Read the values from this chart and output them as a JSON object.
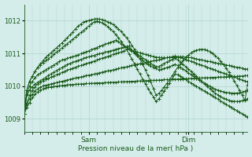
{
  "bg_color": "#d4ecea",
  "grid_color": "#b0d4ce",
  "line_color": "#1a5c1a",
  "xlabel": "Pression niveau de la mer( hPa )",
  "ylim": [
    1008.6,
    1012.5
  ],
  "yticks": [
    1009,
    1010,
    1011,
    1012
  ],
  "xlim": [
    0,
    83
  ],
  "sam_x": 24,
  "dim_x": 61,
  "total_points": 84,
  "series": [
    [
      1009.15,
      1009.35,
      1009.5,
      1009.65,
      1009.75,
      1009.82,
      1009.88,
      1009.92,
      1009.95,
      1009.97,
      1009.98,
      1009.99,
      1010.0,
      1010.01,
      1010.02,
      1010.03,
      1010.04,
      1010.05,
      1010.05,
      1010.06,
      1010.06,
      1010.07,
      1010.07,
      1010.08,
      1010.08,
      1010.09,
      1010.09,
      1010.1,
      1010.1,
      1010.1,
      1010.11,
      1010.11,
      1010.12,
      1010.12,
      1010.12,
      1010.13,
      1010.13,
      1010.14,
      1010.14,
      1010.14,
      1010.15,
      1010.15,
      1010.16,
      1010.16,
      1010.16,
      1010.17,
      1010.17,
      1010.18,
      1010.18,
      1010.18,
      1010.19,
      1010.19,
      1010.2,
      1010.2,
      1010.2,
      1010.21,
      1010.21,
      1010.22,
      1010.22,
      1010.22,
      1010.23,
      1010.23,
      1010.24,
      1010.24,
      1010.24,
      1010.25,
      1010.25,
      1010.26,
      1010.26,
      1010.26,
      1010.27,
      1010.27,
      1010.28,
      1010.28,
      1010.28,
      1010.29,
      1010.29,
      1010.3,
      1010.3,
      1010.3,
      1010.31,
      1010.31,
      1010.32,
      1010.32
    ],
    [
      1009.15,
      1009.45,
      1009.62,
      1009.75,
      1009.85,
      1009.92,
      1009.97,
      1010.01,
      1010.03,
      1010.05,
      1010.07,
      1010.09,
      1010.11,
      1010.13,
      1010.15,
      1010.17,
      1010.19,
      1010.21,
      1010.23,
      1010.25,
      1010.27,
      1010.28,
      1010.3,
      1010.32,
      1010.34,
      1010.35,
      1010.37,
      1010.39,
      1010.41,
      1010.43,
      1010.45,
      1010.47,
      1010.48,
      1010.5,
      1010.52,
      1010.54,
      1010.56,
      1010.58,
      1010.59,
      1010.61,
      1010.63,
      1010.65,
      1010.67,
      1010.69,
      1010.7,
      1010.72,
      1010.74,
      1010.76,
      1010.78,
      1010.79,
      1010.81,
      1010.83,
      1010.85,
      1010.87,
      1010.88,
      1010.9,
      1010.92,
      1010.9,
      1010.88,
      1010.85,
      1010.82,
      1010.79,
      1010.76,
      1010.73,
      1010.7,
      1010.67,
      1010.64,
      1010.61,
      1010.58,
      1010.55,
      1010.52,
      1010.49,
      1010.46,
      1010.43,
      1010.4,
      1010.37,
      1010.34,
      1010.31,
      1010.28,
      1010.25,
      1010.22,
      1010.19,
      1010.16,
      1010.13
    ],
    [
      1009.15,
      1009.5,
      1009.72,
      1009.87,
      1009.98,
      1010.06,
      1010.12,
      1010.17,
      1010.21,
      1010.24,
      1010.28,
      1010.31,
      1010.35,
      1010.38,
      1010.42,
      1010.45,
      1010.49,
      1010.52,
      1010.55,
      1010.58,
      1010.61,
      1010.63,
      1010.66,
      1010.69,
      1010.72,
      1010.74,
      1010.77,
      1010.8,
      1010.83,
      1010.86,
      1010.88,
      1010.91,
      1010.94,
      1010.97,
      1011.0,
      1011.02,
      1011.05,
      1011.08,
      1011.11,
      1011.14,
      1011.1,
      1011.07,
      1011.04,
      1011.02,
      1010.99,
      1010.97,
      1010.95,
      1010.93,
      1010.91,
      1010.89,
      1010.88,
      1010.87,
      1010.87,
      1010.87,
      1010.88,
      1010.88,
      1010.89,
      1010.89,
      1010.9,
      1010.9,
      1010.89,
      1010.88,
      1010.87,
      1010.85,
      1010.83,
      1010.82,
      1010.8,
      1010.78,
      1010.77,
      1010.75,
      1010.73,
      1010.72,
      1010.7,
      1010.68,
      1010.67,
      1010.65,
      1010.63,
      1010.62,
      1010.6,
      1010.58,
      1010.57,
      1010.55,
      1010.53,
      1010.52
    ],
    [
      1009.45,
      1009.72,
      1009.88,
      1009.98,
      1010.06,
      1010.12,
      1010.17,
      1010.22,
      1010.27,
      1010.33,
      1010.38,
      1010.43,
      1010.48,
      1010.53,
      1010.57,
      1010.62,
      1010.66,
      1010.7,
      1010.73,
      1010.76,
      1010.79,
      1010.82,
      1010.85,
      1010.87,
      1010.9,
      1010.92,
      1010.94,
      1010.97,
      1010.99,
      1011.01,
      1011.04,
      1011.06,
      1011.08,
      1011.1,
      1011.13,
      1011.15,
      1011.17,
      1011.19,
      1011.21,
      1011.23,
      1011.1,
      1011.0,
      1010.92,
      1010.85,
      1010.78,
      1010.72,
      1010.67,
      1010.62,
      1010.58,
      1010.54,
      1010.51,
      1010.52,
      1010.54,
      1010.57,
      1010.6,
      1010.63,
      1010.67,
      1010.63,
      1010.58,
      1010.53,
      1010.47,
      1010.41,
      1010.35,
      1010.3,
      1010.24,
      1010.19,
      1010.14,
      1010.09,
      1010.04,
      1009.99,
      1009.95,
      1009.91,
      1009.88,
      1009.85,
      1009.83,
      1009.81,
      1009.8,
      1009.79,
      1009.79,
      1009.79,
      1009.8,
      1009.82,
      1009.84,
      1009.87
    ],
    [
      1009.15,
      1009.75,
      1010.0,
      1010.15,
      1010.25,
      1010.35,
      1010.4,
      1010.45,
      1010.5,
      1010.55,
      1010.6,
      1010.65,
      1010.7,
      1010.75,
      1010.8,
      1010.82,
      1010.85,
      1010.88,
      1010.9,
      1010.93,
      1010.96,
      1010.99,
      1011.02,
      1011.05,
      1011.08,
      1011.12,
      1011.15,
      1011.18,
      1011.22,
      1011.25,
      1011.28,
      1011.31,
      1011.34,
      1011.37,
      1011.4,
      1011.35,
      1011.3,
      1011.25,
      1011.19,
      1011.14,
      1011.08,
      1011.03,
      1010.97,
      1010.92,
      1010.86,
      1010.81,
      1010.75,
      1010.7,
      1010.64,
      1010.59,
      1010.6,
      1010.65,
      1010.7,
      1010.74,
      1010.78,
      1010.82,
      1010.85,
      1010.8,
      1010.74,
      1010.67,
      1010.6,
      1010.52,
      1010.45,
      1010.37,
      1010.3,
      1010.22,
      1010.15,
      1010.07,
      1010.0,
      1009.92,
      1009.85,
      1009.79,
      1009.73,
      1009.68,
      1009.63,
      1009.6,
      1009.57,
      1009.55,
      1009.54,
      1009.53,
      1009.54,
      1009.56,
      1009.59,
      1009.62
    ],
    [
      1009.15,
      1009.88,
      1010.15,
      1010.3,
      1010.45,
      1010.57,
      1010.65,
      1010.72,
      1010.78,
      1010.84,
      1010.9,
      1010.97,
      1011.04,
      1011.1,
      1011.17,
      1011.24,
      1011.3,
      1011.37,
      1011.43,
      1011.5,
      1011.57,
      1011.64,
      1011.7,
      1011.77,
      1011.84,
      1011.91,
      1011.97,
      1011.99,
      1011.97,
      1011.93,
      1011.88,
      1011.82,
      1011.75,
      1011.67,
      1011.58,
      1011.48,
      1011.37,
      1011.25,
      1011.12,
      1010.98,
      1010.83,
      1010.68,
      1010.52,
      1010.37,
      1010.22,
      1010.07,
      1009.93,
      1009.8,
      1009.67,
      1009.53,
      1009.62,
      1009.73,
      1009.84,
      1009.97,
      1010.1,
      1010.23,
      1010.37,
      1010.35,
      1010.3,
      1010.25,
      1010.2,
      1010.15,
      1010.1,
      1010.05,
      1010.0,
      1009.95,
      1009.9,
      1009.85,
      1009.8,
      1009.75,
      1009.7,
      1009.65,
      1009.6,
      1009.55,
      1009.5,
      1009.45,
      1009.4,
      1009.35,
      1009.3,
      1009.25,
      1009.2,
      1009.15,
      1009.1,
      1009.05
    ],
    [
      1009.15,
      1009.88,
      1010.15,
      1010.3,
      1010.45,
      1010.58,
      1010.68,
      1010.78,
      1010.87,
      1010.95,
      1011.02,
      1011.1,
      1011.17,
      1011.25,
      1011.32,
      1011.4,
      1011.48,
      1011.57,
      1011.65,
      1011.75,
      1011.83,
      1011.9,
      1011.96,
      1011.99,
      1012.01,
      1012.03,
      1012.05,
      1012.06,
      1012.05,
      1012.03,
      1012.0,
      1011.97,
      1011.93,
      1011.88,
      1011.82,
      1011.75,
      1011.67,
      1011.58,
      1011.48,
      1011.37,
      1011.25,
      1011.12,
      1010.98,
      1010.83,
      1010.67,
      1010.5,
      1010.32,
      1010.13,
      1009.93,
      1009.72,
      1009.78,
      1009.87,
      1009.97,
      1010.08,
      1010.2,
      1010.32,
      1010.45,
      1010.57,
      1010.68,
      1010.78,
      1010.87,
      1010.95,
      1011.02,
      1011.07,
      1011.1,
      1011.12,
      1011.13,
      1011.12,
      1011.1,
      1011.05,
      1011.0,
      1010.93,
      1010.85,
      1010.76,
      1010.66,
      1010.55,
      1010.43,
      1010.3,
      1010.16,
      1010.02,
      1009.87,
      1009.72,
      1009.56,
      1010.04
    ]
  ]
}
